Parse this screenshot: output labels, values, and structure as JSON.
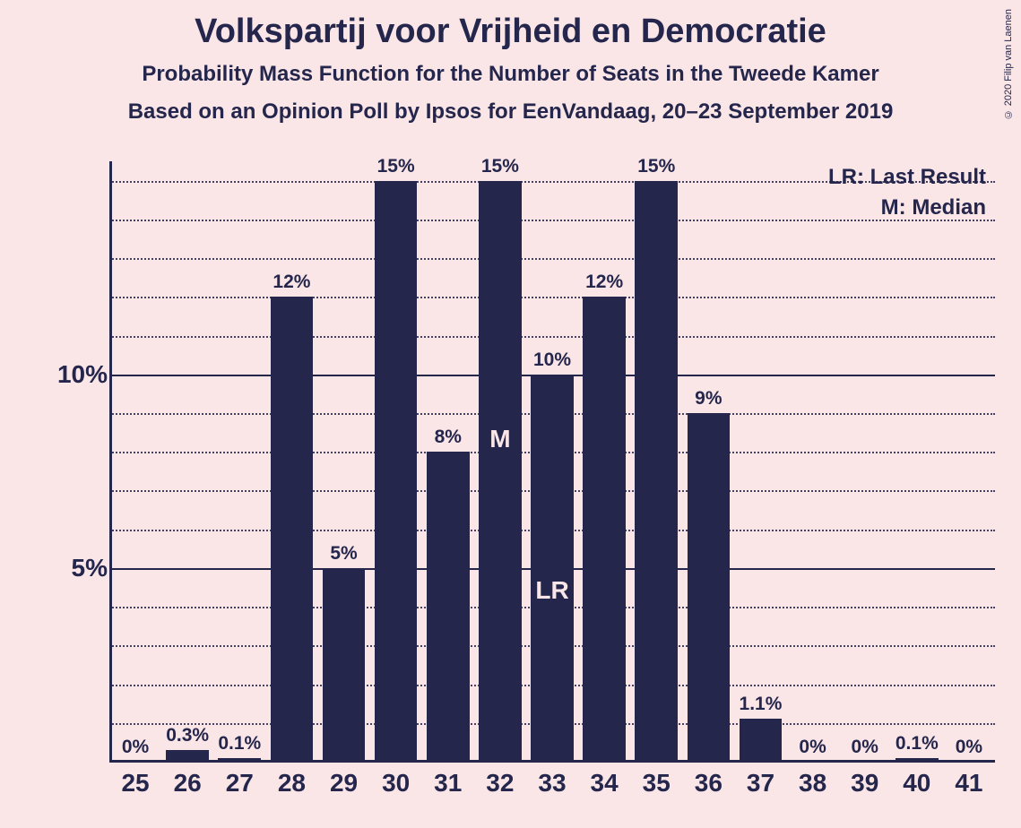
{
  "copyright": "© 2020 Filip van Laenen",
  "title": "Volkspartij voor Vrijheid en Democratie",
  "subtitle1": "Probability Mass Function for the Number of Seats in the Tweede Kamer",
  "subtitle2": "Based on an Opinion Poll by Ipsos for EenVandaag, 20–23 September 2019",
  "legend_lr": "LR: Last Result",
  "legend_m": "M: Median",
  "chart": {
    "type": "bar",
    "bar_color": "#25264c",
    "background_color": "#fae6e7",
    "text_color": "#25264c",
    "ylim_max": 15.5,
    "y_major_ticks": [
      5,
      10
    ],
    "y_minor_step": 1,
    "bar_width_ratio": 0.82,
    "categories": [
      "25",
      "26",
      "27",
      "28",
      "29",
      "30",
      "31",
      "32",
      "33",
      "34",
      "35",
      "36",
      "37",
      "38",
      "39",
      "40",
      "41"
    ],
    "values": [
      0,
      0.3,
      0.1,
      12,
      5,
      15,
      8,
      15,
      10,
      12,
      15,
      9,
      1.1,
      0,
      0,
      0.1,
      0
    ],
    "labels": [
      "0%",
      "0.3%",
      "0.1%",
      "12%",
      "5%",
      "15%",
      "8%",
      "15%",
      "10%",
      "12%",
      "15%",
      "9%",
      "1.1%",
      "0%",
      "0%",
      "0.1%",
      "0%"
    ],
    "median_index": 7,
    "median_label": "M",
    "last_result_index": 8,
    "last_result_label": "LR"
  }
}
